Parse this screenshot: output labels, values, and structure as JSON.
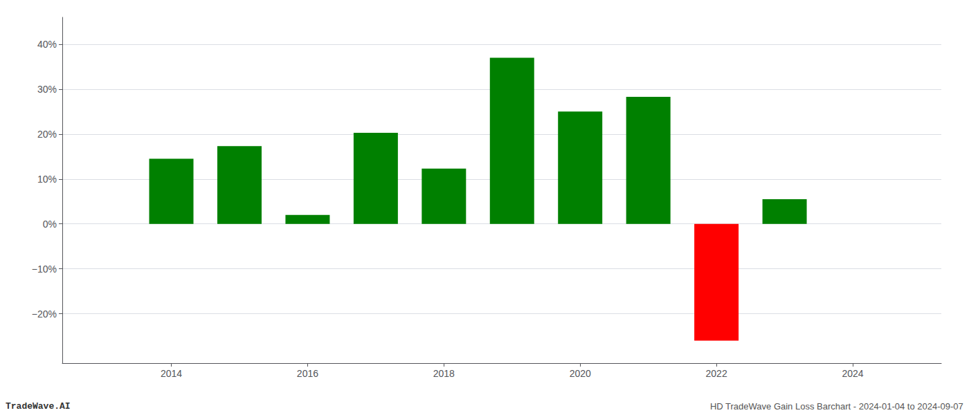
{
  "chart_data": {
    "type": "bar",
    "x": [
      2014,
      2015,
      2016,
      2017,
      2018,
      2019,
      2020,
      2021,
      2022,
      2023
    ],
    "values": [
      14.5,
      17.3,
      2.0,
      20.3,
      12.3,
      37.0,
      25.0,
      28.3,
      -26.0,
      5.5
    ],
    "colors": [
      "#008000",
      "#008000",
      "#008000",
      "#008000",
      "#008000",
      "#008000",
      "#008000",
      "#008000",
      "#ff0000",
      "#008000"
    ],
    "xlim": [
      2012.4,
      2025.3
    ],
    "xticks": [
      2014,
      2016,
      2018,
      2020,
      2022,
      2024
    ],
    "ylim": [
      -31,
      46
    ],
    "yticks": [
      {
        "value": -20,
        "label": "−20%"
      },
      {
        "value": -10,
        "label": "−10%"
      },
      {
        "value": 0,
        "label": "0%"
      },
      {
        "value": 10,
        "label": "10%"
      },
      {
        "value": 20,
        "label": "20%"
      },
      {
        "value": 30,
        "label": "30%"
      },
      {
        "value": 40,
        "label": "40%"
      }
    ],
    "grid": true,
    "annotations": [
      "TradeWave.AI",
      "HD TradeWave Gain Loss Barchart - 2024-01-04 to 2024-09-07"
    ]
  }
}
